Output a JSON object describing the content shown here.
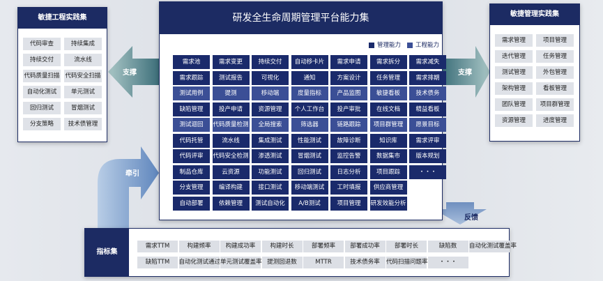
{
  "left_panel": {
    "title": "敏捷工程实践集",
    "items": [
      "代码审查",
      "持续集成",
      "持续交付",
      "流水线",
      "代码质量扫描",
      "代码安全扫描",
      "自动化测试",
      "单元测试",
      "回归测试",
      "冒烟测试",
      "分支策略",
      "技术债管理"
    ]
  },
  "right_panel": {
    "title": "敏捷管理实践集",
    "items": [
      "需求管理",
      "项目管理",
      "迭代管理",
      "任务管理",
      "测试管理",
      "外包管理",
      "架构管理",
      "看板管理",
      "团队管理",
      "项目群管理",
      "资源管理",
      "进度管理"
    ]
  },
  "center": {
    "title": "研发全生命周期管理平台能力集",
    "legend": [
      "管理能力",
      "工程能力"
    ],
    "columns": [
      [
        "需求池",
        "需求跟踪",
        "测试用例",
        "缺陷管理",
        "测试迴回",
        "代码托管",
        "代码评审",
        "制品仓库",
        "分支管理",
        "自动部署"
      ],
      [
        "需求变更",
        "测试报告",
        "提测",
        "投产申请",
        "代码质量检测",
        "流水线",
        "代码安全检测",
        "云资源",
        "编译构建",
        "依赖管理"
      ],
      [
        "持续交付",
        "可视化",
        "移动端",
        "资源管理",
        "全局搜索",
        "集成测试",
        "渗透测试",
        "功能测试",
        "接口测试",
        "测试自动化"
      ],
      [
        "自动移卡片",
        "通知",
        "度量指标",
        "个人工作台",
        "筛选器",
        "性能测试",
        "冒烟测试",
        "回归测试",
        "移动端测试",
        "A/B测试"
      ],
      [
        "需求申请",
        "方案设计",
        "产品监图",
        "投产审批",
        "链路跟踪",
        "故障诊断",
        "监控告警",
        "日志分析",
        "工时填报",
        "项目管理"
      ],
      [
        "需求拆分",
        "任务管理",
        "敏捷看板",
        "在线文档",
        "项目群管理",
        "知识库",
        "数据集市",
        "项目跟踪",
        "供应商管理",
        "研发效能分析"
      ],
      [
        "需求减失",
        "需求排期",
        "技术债务",
        "精益看板",
        "愿景目标",
        "需求评审",
        "版本规划",
        "・・・"
      ]
    ]
  },
  "arrows": {
    "left_support": "支撑",
    "right_support": "支撑",
    "pull": "牵引",
    "feedback": "反馈"
  },
  "metrics": {
    "title": "指标集",
    "rows": [
      [
        "需求TTM",
        "构建频率",
        "构建成功率",
        "构建时长",
        "部署频率",
        "部署成功率",
        "部署时长",
        "缺陷数",
        "自动化测试覆盖率"
      ],
      [
        "缺陷TTM",
        "自动化测试通过率",
        "单元测试覆盖率",
        "提测回退数",
        "MTTR",
        "技术债务率",
        "代码扫描问题率",
        "・・・"
      ]
    ]
  }
}
